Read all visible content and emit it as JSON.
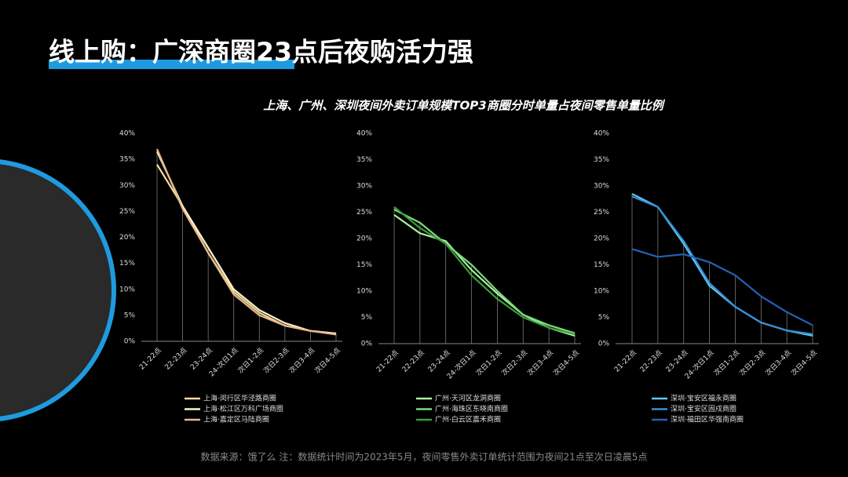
{
  "page": {
    "title": "线上购：广深商圈23点后夜购活力强",
    "subtitle": "上海、广州、深圳夜间外卖订单规模TOP3商圈分时单量占夜间零售单量比例",
    "source": "数据来源：饿了么    注：数据统计时间为2023年5月，夜间零售外卖订单统计范围为夜间21点至次日凌晨5点"
  },
  "chart_data": [
    {
      "type": "line",
      "categories": [
        "21-22点",
        "22-23点",
        "23-24点",
        "24-次日1点",
        "次日1-2点",
        "次日2-3点",
        "次日3-4点",
        "次日4-5点"
      ],
      "ylim": [
        0,
        40
      ],
      "yticks": [
        {
          "value": 0,
          "label": "0%"
        },
        {
          "value": 5,
          "label": "5%"
        },
        {
          "value": 10,
          "label": "10%"
        },
        {
          "value": 15,
          "label": "15%"
        },
        {
          "value": 20,
          "label": "20%"
        },
        {
          "value": 25,
          "label": "25%"
        },
        {
          "value": 30,
          "label": "30%"
        },
        {
          "value": 35,
          "label": "35%"
        },
        {
          "value": 40,
          "label": "40%"
        }
      ],
      "series": [
        {
          "name": "上海·闵行区华泾路商圈",
          "color": "#f3dc9c",
          "values": [
            34,
            26,
            17,
            9.5,
            5.5,
            3,
            2,
            1.5
          ]
        },
        {
          "name": "上海·松江区万科广场商圈",
          "color": "#fff1cc",
          "values": [
            36.5,
            26,
            18,
            10,
            6,
            3.5,
            2,
            1.5
          ]
        },
        {
          "name": "上海·嘉定区马陆商圈",
          "color": "#e7b98c",
          "values": [
            37,
            25.5,
            17,
            9,
            5,
            3,
            2,
            1.3
          ]
        }
      ]
    },
    {
      "type": "line",
      "categories": [
        "21-22点",
        "22-23点",
        "23-24点",
        "24-次日1点",
        "次日1-2点",
        "次日2-3点",
        "次日3-4点",
        "次日4-5点"
      ],
      "ylim": [
        0,
        40
      ],
      "yticks": [
        {
          "value": 0,
          "label": "0%"
        },
        {
          "value": 5,
          "label": "5%"
        },
        {
          "value": 10,
          "label": "10%"
        },
        {
          "value": 15,
          "label": "15%"
        },
        {
          "value": 20,
          "label": "20%"
        },
        {
          "value": 25,
          "label": "25%"
        },
        {
          "value": 30,
          "label": "30%"
        },
        {
          "value": 35,
          "label": "35%"
        },
        {
          "value": 40,
          "label": "40%"
        }
      ],
      "series": [
        {
          "name": "广州·天河区龙洞商圈",
          "color": "#a9f0a0",
          "values": [
            24.5,
            21,
            19.5,
            14,
            9.5,
            5.5,
            3,
            1.5
          ]
        },
        {
          "name": "广州·海珠区东晓南商圈",
          "color": "#7cd97c",
          "values": [
            25.5,
            23,
            19,
            15,
            10,
            5.5,
            3.5,
            2
          ]
        },
        {
          "name": "广州·白云区嘉禾商圈",
          "color": "#3a9e3a",
          "values": [
            26,
            22,
            19,
            13,
            8.5,
            5,
            3,
            1.8
          ]
        }
      ]
    },
    {
      "type": "line",
      "categories": [
        "21-22点",
        "22-23点",
        "23-24点",
        "24-次日1点",
        "次日1-2点",
        "次日2-3点",
        "次日3-4点",
        "次日4-5点"
      ],
      "ylim": [
        0,
        40
      ],
      "yticks": [
        {
          "value": 0,
          "label": "0%"
        },
        {
          "value": 5,
          "label": "5%"
        },
        {
          "value": 10,
          "label": "10%"
        },
        {
          "value": 15,
          "label": "15%"
        },
        {
          "value": 20,
          "label": "20%"
        },
        {
          "value": 25,
          "label": "25%"
        },
        {
          "value": 30,
          "label": "30%"
        },
        {
          "value": 35,
          "label": "35%"
        },
        {
          "value": 40,
          "label": "40%"
        }
      ],
      "series": [
        {
          "name": "深圳·宝安区福永商圈",
          "color": "#5ec8f0",
          "values": [
            28.5,
            26,
            19,
            11,
            7,
            4,
            2.5,
            1.5
          ]
        },
        {
          "name": "深圳·宝安区固戍商圈",
          "color": "#3a8fd8",
          "values": [
            28,
            26,
            19.5,
            11.5,
            7,
            4,
            2.5,
            1.8
          ]
        },
        {
          "name": "深圳·福田区华强南商圈",
          "color": "#2262b2",
          "values": [
            18,
            16.5,
            17,
            15.5,
            13,
            9,
            6,
            3.5
          ]
        }
      ]
    }
  ]
}
